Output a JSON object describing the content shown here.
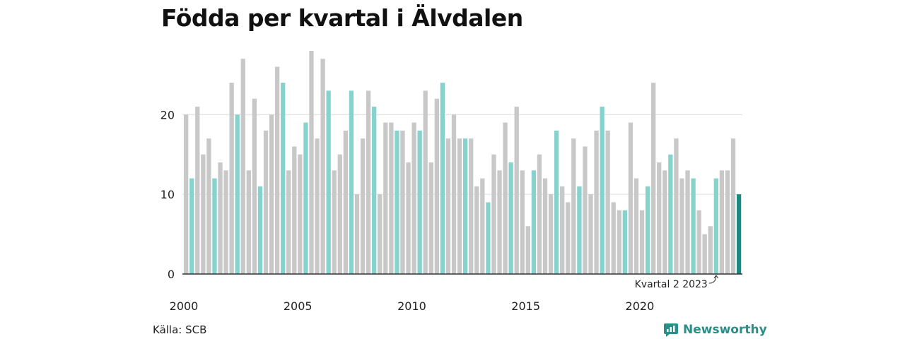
{
  "title": "Födda per kvartal i Älvdalen",
  "source": "Källa: SCB",
  "brand": {
    "name": "Newsworthy",
    "icon": "newsworthy-logo-icon"
  },
  "colors": {
    "other_quarter": "#c8c8c8",
    "same_quarter": "#86d3cd",
    "latest": "#1c8a80",
    "grid": "#dcdcdc",
    "baseline": "#333333",
    "brand": "#2a8f88"
  },
  "chart_data": {
    "type": "bar",
    "title": "Födda per kvartal i Älvdalen",
    "xlabel": "",
    "ylabel": "",
    "ylim": [
      0,
      28
    ],
    "yticks": [
      0,
      10,
      20
    ],
    "xticks": [
      "2000",
      "2005",
      "2010",
      "2015",
      "2020"
    ],
    "grid": true,
    "annotation": {
      "text": "Kvartal 2 2023",
      "target": "2023 Q2"
    },
    "categories": [
      "2000 Q1",
      "2000 Q2",
      "2000 Q3",
      "2000 Q4",
      "2001 Q1",
      "2001 Q2",
      "2001 Q3",
      "2001 Q4",
      "2002 Q1",
      "2002 Q2",
      "2002 Q3",
      "2002 Q4",
      "2003 Q1",
      "2003 Q2",
      "2003 Q3",
      "2003 Q4",
      "2004 Q1",
      "2004 Q2",
      "2004 Q3",
      "2004 Q4",
      "2005 Q1",
      "2005 Q2",
      "2005 Q3",
      "2005 Q4",
      "2006 Q1",
      "2006 Q2",
      "2006 Q3",
      "2006 Q4",
      "2007 Q1",
      "2007 Q2",
      "2007 Q3",
      "2007 Q4",
      "2008 Q1",
      "2008 Q2",
      "2008 Q3",
      "2008 Q4",
      "2009 Q1",
      "2009 Q2",
      "2009 Q3",
      "2009 Q4",
      "2010 Q1",
      "2010 Q2",
      "2010 Q3",
      "2010 Q4",
      "2011 Q1",
      "2011 Q2",
      "2011 Q3",
      "2011 Q4",
      "2012 Q1",
      "2012 Q2",
      "2012 Q3",
      "2012 Q4",
      "2013 Q1",
      "2013 Q2",
      "2013 Q3",
      "2013 Q4",
      "2014 Q1",
      "2014 Q2",
      "2014 Q3",
      "2014 Q4",
      "2015 Q1",
      "2015 Q2",
      "2015 Q3",
      "2015 Q4",
      "2016 Q1",
      "2016 Q2",
      "2016 Q3",
      "2016 Q4",
      "2017 Q1",
      "2017 Q2",
      "2017 Q3",
      "2017 Q4",
      "2018 Q1",
      "2018 Q2",
      "2018 Q3",
      "2018 Q4",
      "2019 Q1",
      "2019 Q2",
      "2019 Q3",
      "2019 Q4",
      "2020 Q1",
      "2020 Q2",
      "2020 Q3",
      "2020 Q4",
      "2021 Q1",
      "2021 Q2",
      "2021 Q3",
      "2021 Q4",
      "2022 Q1",
      "2022 Q2",
      "2022 Q3",
      "2022 Q4",
      "2023 Q1",
      "2023 Q2",
      "2023 Q3",
      "2023 Q4",
      "2024 Q1",
      "2024 Q2"
    ],
    "values": [
      20,
      12,
      21,
      15,
      17,
      12,
      14,
      13,
      24,
      20,
      27,
      13,
      22,
      11,
      18,
      20,
      26,
      24,
      13,
      16,
      15,
      19,
      28,
      17,
      27,
      23,
      13,
      15,
      18,
      23,
      10,
      17,
      23,
      21,
      10,
      19,
      19,
      18,
      18,
      14,
      19,
      18,
      23,
      14,
      22,
      24,
      17,
      20,
      17,
      17,
      17,
      11,
      12,
      9,
      15,
      13,
      19,
      14,
      21,
      13,
      6,
      13,
      15,
      12,
      10,
      18,
      11,
      9,
      17,
      11,
      16,
      10,
      18,
      21,
      18,
      9,
      8,
      8,
      19,
      12,
      8,
      11,
      24,
      14,
      13,
      15,
      17,
      12,
      13,
      12,
      8,
      5,
      6,
      12,
      13,
      13,
      17,
      10
    ],
    "highlight_quarter": "Q2",
    "latest": "2024 Q2"
  }
}
